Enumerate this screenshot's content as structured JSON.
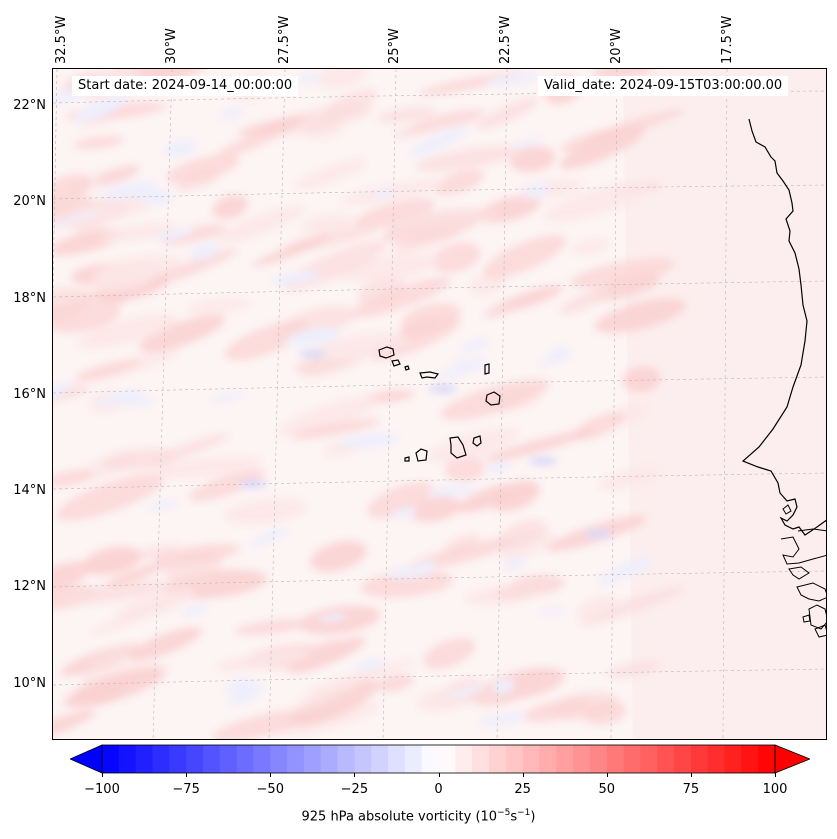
{
  "map": {
    "start_date": "Start date: 2024-09-14_00:00:00",
    "valid_date": "Valid_date: 2024-09-15T03:00:00.00",
    "longitude_labels": [
      "32.5°W",
      "30°W",
      "27.5°W",
      "25°W",
      "22.5°W",
      "20°W",
      "17.5°W"
    ],
    "latitude_labels": [
      "22°N",
      "20°N",
      "18°N",
      "16°N",
      "14°N",
      "12°N",
      "10°N"
    ],
    "field": "925 hPa absolute vorticity",
    "features": [
      "cape-verde-islands",
      "west-africa-coastline"
    ]
  },
  "colorbar": {
    "min": -100,
    "max": 100,
    "ticks": [
      "−100",
      "−75",
      "−50",
      "−25",
      "0",
      "25",
      "50",
      "75",
      "100"
    ],
    "label_main": "925 hPa absolute vorticity (10",
    "label_exp1": "−5",
    "label_mid": "s",
    "label_exp2": "−1",
    "label_end": ")",
    "colormap": "bwr",
    "color_low": "#0000ff",
    "color_mid": "#ffffff",
    "color_high": "#ff0000"
  }
}
